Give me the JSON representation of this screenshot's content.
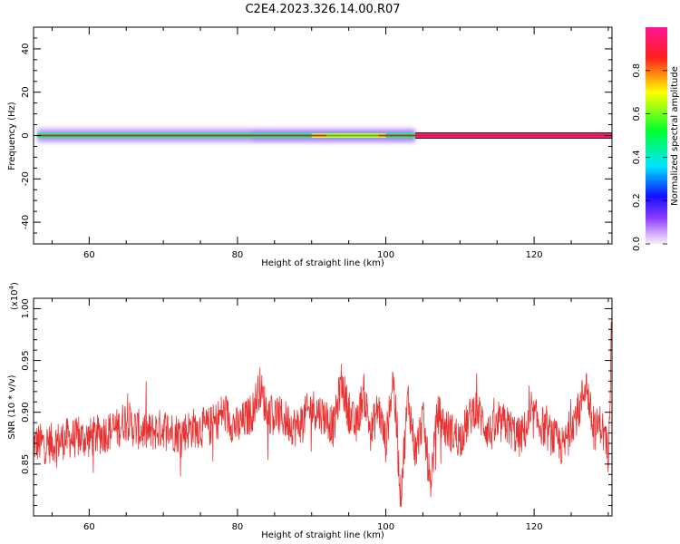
{
  "title": "C2E4.2023.326.14.00.R07",
  "chart_data": [
    {
      "type": "heatmap",
      "xlabel": "Height of straight line (km)",
      "ylabel": "Frequency (Hz)",
      "xlim": [
        52.5,
        130.5
      ],
      "ylim": [
        -50,
        50
      ],
      "x_ticks": [
        60,
        80,
        100,
        120
      ],
      "y_ticks": [
        40,
        20,
        0,
        -20,
        -40
      ],
      "grid": false,
      "colorbar": {
        "label": "Normalized spectral amplitude",
        "range": [
          0,
          1
        ],
        "ticks": [
          "0.0",
          "0.2",
          "0.4",
          "0.6",
          "0.8"
        ],
        "colors": [
          "#f2ecf9",
          "#b36bff",
          "#2020ff",
          "#00e5ff",
          "#00ff40",
          "#ffff00",
          "#ff2020",
          "#ff1493"
        ]
      },
      "band": {
        "center_hz": 0,
        "halo_x_range": [
          53,
          104
        ],
        "halo_half_width_hz": 3.5,
        "strong_x_range": [
          104,
          130.5
        ],
        "strong_half_width_hz": 1
      }
    },
    {
      "type": "line",
      "xlabel": "Height of straight line (km)",
      "ylabel": "SNR (10 * v/v)",
      "y_multiplier_label": "(x10",
      "y_multiplier_exp": "4",
      "y_multiplier_close": ")",
      "xlim": [
        52.5,
        130.5
      ],
      "ylim": [
        0.8,
        1.01
      ],
      "x_ticks": [
        60,
        80,
        100,
        120
      ],
      "y_ticks": [
        "1.00",
        "0.95",
        "0.90",
        "0.85"
      ],
      "color": "#e83232",
      "series": [
        {
          "x": [
            52.5,
            55,
            57,
            60,
            62,
            64,
            65,
            66,
            68,
            70,
            72,
            74,
            76,
            77,
            78,
            80,
            82,
            83,
            84,
            86,
            88,
            90,
            92,
            93,
            94,
            95,
            96,
            97,
            98,
            99,
            100,
            101,
            102,
            103,
            104,
            105,
            106,
            107,
            108,
            110,
            112,
            114,
            116,
            118,
            120,
            122,
            124,
            125,
            126,
            127,
            128,
            129,
            130,
            130.5
          ],
          "y": [
            0.87,
            0.87,
            0.875,
            0.875,
            0.88,
            0.885,
            0.895,
            0.885,
            0.88,
            0.885,
            0.88,
            0.885,
            0.885,
            0.89,
            0.9,
            0.885,
            0.9,
            0.925,
            0.9,
            0.895,
            0.885,
            0.905,
            0.895,
            0.885,
            0.93,
            0.9,
            0.885,
            0.92,
            0.88,
            0.905,
            0.87,
            0.935,
            0.82,
            0.915,
            0.86,
            0.895,
            0.83,
            0.9,
            0.885,
            0.875,
            0.905,
            0.88,
            0.89,
            0.875,
            0.895,
            0.88,
            0.865,
            0.89,
            0.9,
            0.93,
            0.88,
            0.89,
            0.86,
            1.0
          ]
        }
      ]
    }
  ]
}
